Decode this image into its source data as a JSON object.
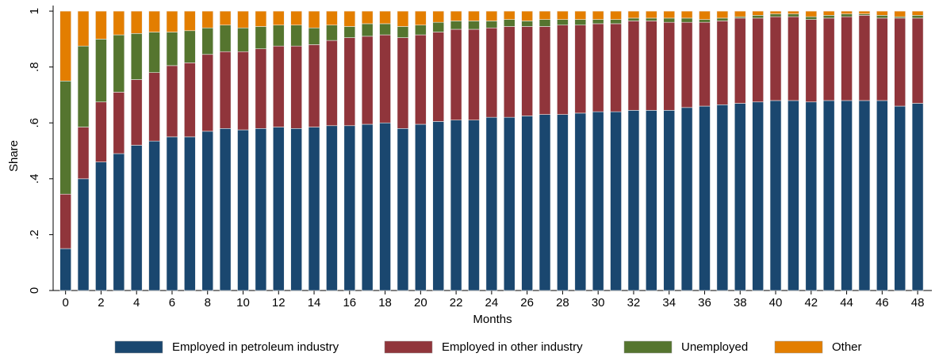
{
  "chart_data": {
    "type": "stacked_bar",
    "x_label": "Months",
    "y_label": "Share",
    "x": [
      0,
      1,
      2,
      3,
      4,
      5,
      6,
      7,
      8,
      9,
      10,
      11,
      12,
      13,
      14,
      15,
      16,
      17,
      18,
      19,
      20,
      21,
      22,
      23,
      24,
      25,
      26,
      27,
      28,
      29,
      30,
      31,
      32,
      33,
      34,
      35,
      36,
      37,
      38,
      39,
      40,
      41,
      42,
      43,
      44,
      45,
      46,
      47,
      48
    ],
    "xlim": [
      -0.7,
      48.8
    ],
    "xticks": [
      0,
      2,
      4,
      6,
      8,
      10,
      12,
      14,
      16,
      18,
      20,
      22,
      24,
      26,
      28,
      30,
      32,
      34,
      36,
      38,
      40,
      42,
      44,
      46,
      48
    ],
    "ylim": [
      0,
      1.02
    ],
    "yticks": [
      0,
      {
        "value": 0.2,
        "label": ".2"
      },
      {
        "value": 0.4,
        "label": ".4"
      },
      {
        "value": 0.6,
        "label": ".6"
      },
      {
        "value": 0.8,
        "label": ".8"
      },
      1
    ],
    "legend": "bottom",
    "series": [
      {
        "name": "Employed in petroleum industry",
        "color": "#1a476f",
        "values": [
          0.15,
          0.4,
          0.46,
          0.49,
          0.52,
          0.535,
          0.55,
          0.55,
          0.57,
          0.58,
          0.575,
          0.58,
          0.585,
          0.58,
          0.585,
          0.59,
          0.59,
          0.595,
          0.6,
          0.58,
          0.595,
          0.605,
          0.61,
          0.61,
          0.62,
          0.62,
          0.625,
          0.63,
          0.63,
          0.635,
          0.64,
          0.64,
          0.645,
          0.645,
          0.645,
          0.655,
          0.66,
          0.665,
          0.67,
          0.675,
          0.68,
          0.68,
          0.675,
          0.68,
          0.68,
          0.68,
          0.68,
          0.66,
          0.67
        ]
      },
      {
        "name": "Employed in other industry",
        "color": "#90353b",
        "values": [
          0.195,
          0.185,
          0.215,
          0.22,
          0.235,
          0.245,
          0.255,
          0.265,
          0.275,
          0.275,
          0.28,
          0.285,
          0.29,
          0.295,
          0.295,
          0.305,
          0.315,
          0.315,
          0.315,
          0.325,
          0.32,
          0.32,
          0.325,
          0.325,
          0.32,
          0.325,
          0.32,
          0.315,
          0.32,
          0.315,
          0.315,
          0.315,
          0.32,
          0.32,
          0.315,
          0.305,
          0.3,
          0.3,
          0.305,
          0.3,
          0.3,
          0.3,
          0.295,
          0.295,
          0.3,
          0.305,
          0.295,
          0.315,
          0.305
        ]
      },
      {
        "name": "Unemployed",
        "color": "#55752f",
        "values": [
          0.405,
          0.29,
          0.225,
          0.205,
          0.165,
          0.145,
          0.12,
          0.115,
          0.095,
          0.095,
          0.085,
          0.08,
          0.075,
          0.075,
          0.06,
          0.055,
          0.04,
          0.045,
          0.04,
          0.04,
          0.035,
          0.035,
          0.03,
          0.03,
          0.025,
          0.025,
          0.02,
          0.025,
          0.02,
          0.02,
          0.015,
          0.015,
          0.01,
          0.01,
          0.015,
          0.015,
          0.01,
          0.01,
          0.005,
          0.01,
          0.01,
          0.01,
          0.01,
          0.01,
          0.01,
          0.005,
          0.01,
          0.005,
          0.01
        ]
      },
      {
        "name": "Other",
        "color": "#e37e00",
        "values": [
          0.25,
          0.125,
          0.1,
          0.085,
          0.08,
          0.075,
          0.075,
          0.07,
          0.06,
          0.05,
          0.06,
          0.055,
          0.05,
          0.05,
          0.06,
          0.05,
          0.055,
          0.045,
          0.045,
          0.055,
          0.05,
          0.04,
          0.035,
          0.035,
          0.035,
          0.03,
          0.035,
          0.03,
          0.03,
          0.03,
          0.03,
          0.03,
          0.025,
          0.025,
          0.025,
          0.025,
          0.03,
          0.025,
          0.02,
          0.015,
          0.01,
          0.01,
          0.02,
          0.015,
          0.01,
          0.01,
          0.015,
          0.02,
          0.015
        ]
      }
    ]
  }
}
